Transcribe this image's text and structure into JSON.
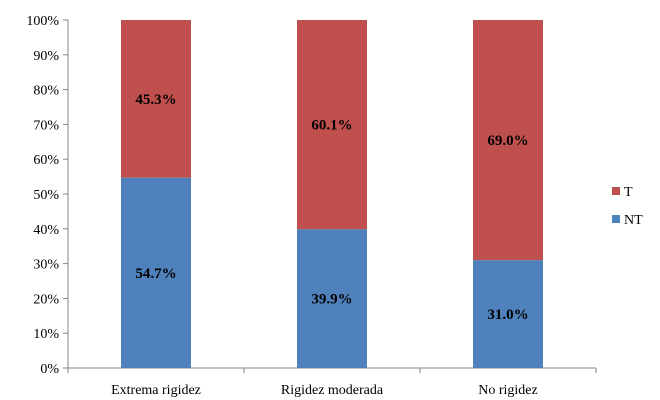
{
  "chart_data": {
    "type": "bar",
    "stacked": true,
    "percent": true,
    "categories": [
      "Extrema rigidez",
      "Rigidez moderada",
      "No rigidez"
    ],
    "series": [
      {
        "name": "NT",
        "values": [
          54.7,
          39.9,
          31.0
        ],
        "labels": [
          "54.7%",
          "39.9%",
          "31.0%"
        ],
        "color": "#4f81bd"
      },
      {
        "name": "T",
        "values": [
          45.3,
          60.1,
          69.0
        ],
        "labels": [
          "45.3%",
          "60.1%",
          "69.0%"
        ],
        "color": "#c0504d"
      }
    ],
    "ylim": [
      0,
      100
    ],
    "yticks": [
      "0%",
      "10%",
      "20%",
      "30%",
      "40%",
      "50%",
      "60%",
      "70%",
      "80%",
      "90%",
      "100%"
    ],
    "grid": false,
    "legend": {
      "placement": "right",
      "order": [
        "T",
        "NT"
      ]
    }
  }
}
